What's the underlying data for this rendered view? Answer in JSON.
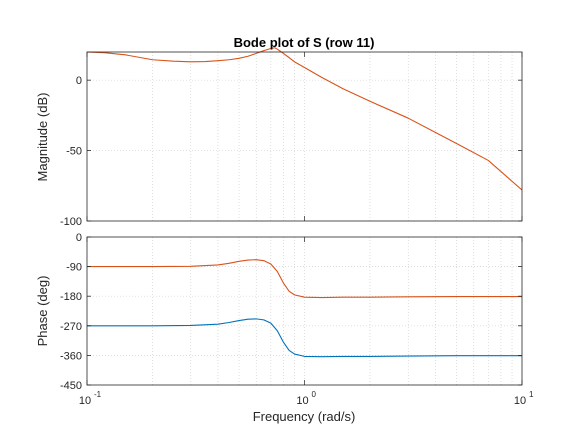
{
  "chart_data": [
    {
      "type": "line",
      "title": "Bode plot of S (row 11)",
      "xlabel": "",
      "ylabel": "Magnitude (dB)",
      "xscale": "log",
      "xlim": [
        0.1,
        10
      ],
      "ylim": [
        -100,
        20
      ],
      "yticks": [
        0,
        -50,
        -100
      ],
      "ytick_labels": [
        "0",
        "-50",
        "-100"
      ],
      "grid": "dotted",
      "colors": {
        "series": "#d95319",
        "grid": "#d0d0d0",
        "axes": "#262626"
      },
      "series": [
        {
          "x": [
            0.1,
            0.12,
            0.15,
            0.2,
            0.25,
            0.3,
            0.35,
            0.4,
            0.45,
            0.5,
            0.55,
            0.6,
            0.65,
            0.7,
            0.73,
            0.75,
            0.8,
            0.85,
            0.9,
            1.0,
            1.2,
            1.5,
            2,
            3,
            5,
            7,
            10
          ],
          "y": [
            20,
            19.5,
            18,
            14.5,
            13.5,
            13,
            13.2,
            13.8,
            14.5,
            15.5,
            17,
            19,
            21,
            22.5,
            23,
            22,
            19,
            16,
            13,
            9,
            2,
            -6,
            -15,
            -27,
            -45,
            -57,
            -78
          ]
        }
      ]
    },
    {
      "type": "line",
      "title": "",
      "xlabel": "Frequency  (rad/s)",
      "ylabel": "Phase (deg)",
      "xscale": "log",
      "xlim": [
        0.1,
        10
      ],
      "ylim": [
        -450,
        0
      ],
      "xticks": [
        0.1,
        1,
        10
      ],
      "xtick_labels": [
        [
          "10",
          "-1"
        ],
        [
          "10",
          "0"
        ],
        [
          "10",
          "1"
        ]
      ],
      "yticks": [
        0,
        -90,
        -180,
        -270,
        -360,
        -450
      ],
      "ytick_labels": [
        "0",
        "-90",
        "-180",
        "-270",
        "-360",
        "-450"
      ],
      "grid": "dotted",
      "colors": {
        "grid": "#d0d0d0",
        "axes": "#262626"
      },
      "series": [
        {
          "color": "#d95319",
          "x": [
            0.1,
            0.2,
            0.3,
            0.4,
            0.45,
            0.5,
            0.55,
            0.6,
            0.65,
            0.7,
            0.75,
            0.8,
            0.85,
            0.9,
            1.0,
            1.2,
            1.5,
            2,
            3,
            5,
            10
          ],
          "y": [
            -90,
            -90,
            -89,
            -85,
            -80,
            -74,
            -70,
            -69,
            -72,
            -82,
            -105,
            -140,
            -165,
            -176,
            -183,
            -184,
            -183,
            -183,
            -182,
            -181,
            -181
          ]
        },
        {
          "color": "#0072bd",
          "x": [
            0.1,
            0.2,
            0.3,
            0.4,
            0.45,
            0.5,
            0.55,
            0.6,
            0.65,
            0.7,
            0.75,
            0.8,
            0.85,
            0.9,
            1.0,
            1.2,
            1.5,
            2,
            3,
            5,
            10
          ],
          "y": [
            -270,
            -270,
            -269,
            -265,
            -260,
            -254,
            -250,
            -249,
            -252,
            -262,
            -285,
            -320,
            -345,
            -356,
            -363,
            -364,
            -363,
            -363,
            -362,
            -361,
            -361
          ]
        }
      ]
    }
  ]
}
